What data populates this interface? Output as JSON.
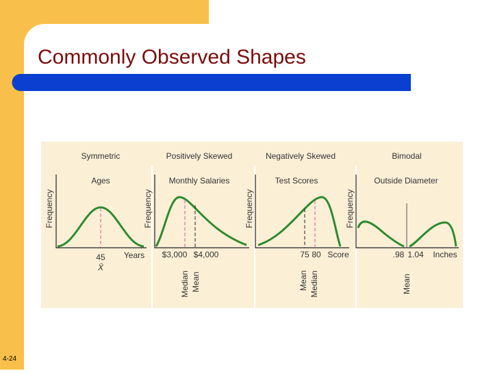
{
  "title": "Commonly Observed Shapes",
  "page_number": "4-24",
  "figure": {
    "panels": [
      {
        "title": "Symmetric",
        "subtitle": "Ages",
        "y_label": "Frequency",
        "x_labels": [
          "45",
          "Years"
        ],
        "symbol": "X̄",
        "markers": []
      },
      {
        "title": "Positively Skewed",
        "subtitle": "Monthly Salaries",
        "y_label": "Frequency",
        "x_labels": [
          "$3,000",
          "$4,000"
        ],
        "markers": [
          "Median",
          "Mean"
        ]
      },
      {
        "title": "Negatively Skewed",
        "subtitle": "Test Scores",
        "y_label": "Frequency",
        "x_labels": [
          "75",
          "80",
          "Score"
        ],
        "markers": [
          "Mean",
          "Median"
        ]
      },
      {
        "title": "Bimodal",
        "subtitle": "Outside Diameter",
        "y_label": "Frequency",
        "x_labels": [
          ".98",
          "1.04",
          "Inches"
        ],
        "markers": [
          "Mean"
        ]
      }
    ]
  }
}
